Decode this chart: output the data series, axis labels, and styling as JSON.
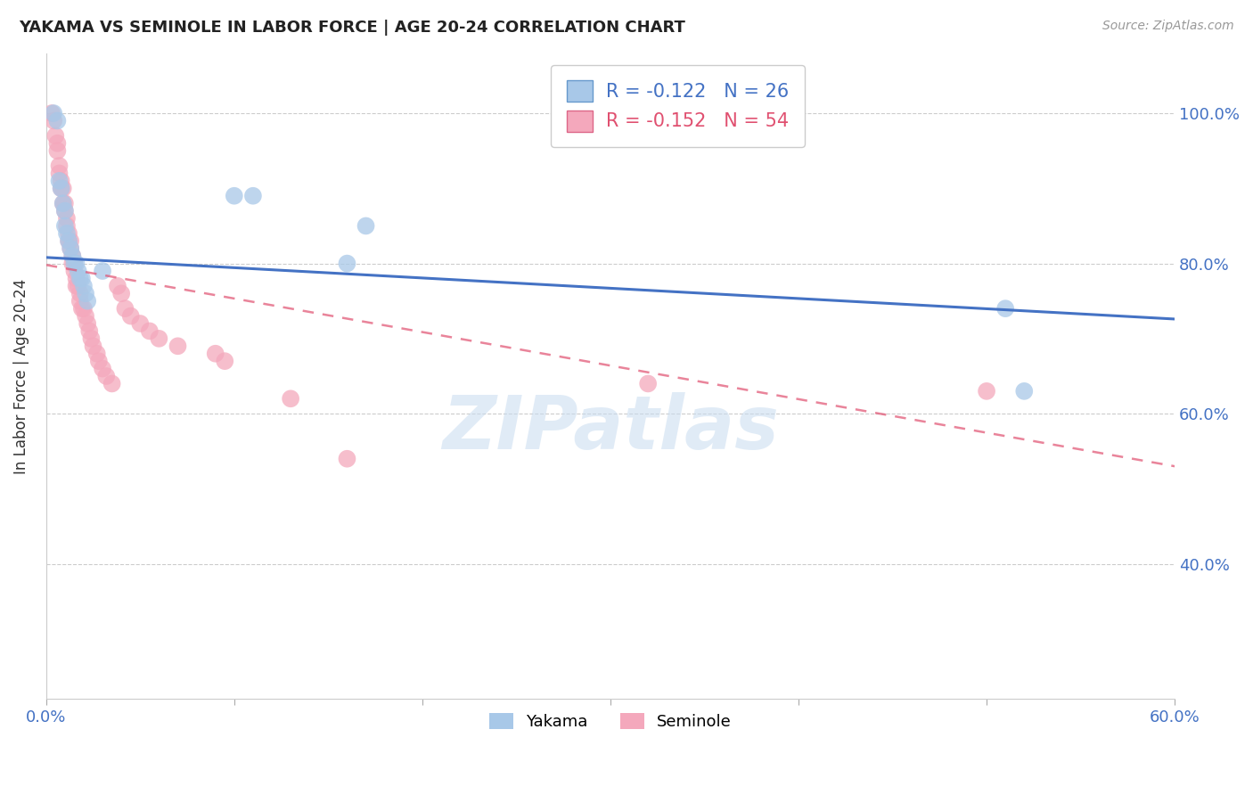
{
  "title": "YAKAMA VS SEMINOLE IN LABOR FORCE | AGE 20-24 CORRELATION CHART",
  "source": "Source: ZipAtlas.com",
  "ylabel": "In Labor Force | Age 20-24",
  "xlim": [
    0.0,
    0.6
  ],
  "ylim": [
    0.22,
    1.08
  ],
  "yakama_color": "#A8C8E8",
  "seminole_color": "#F4A8BC",
  "trendline_yakama_color": "#4472C4",
  "trendline_seminole_color": "#E05070",
  "legend_r_yakama": "R = -0.122",
  "legend_n_yakama": "N = 26",
  "legend_r_seminole": "R = -0.152",
  "legend_n_seminole": "N = 54",
  "watermark": "ZIPatlas",
  "yakama_x": [
    0.004,
    0.006,
    0.007,
    0.008,
    0.009,
    0.01,
    0.01,
    0.011,
    0.012,
    0.013,
    0.014,
    0.015,
    0.016,
    0.017,
    0.018,
    0.019,
    0.02,
    0.021,
    0.022,
    0.03,
    0.1,
    0.11,
    0.16,
    0.17,
    0.51,
    0.52
  ],
  "yakama_y": [
    1.0,
    0.99,
    0.91,
    0.9,
    0.88,
    0.87,
    0.85,
    0.84,
    0.83,
    0.82,
    0.81,
    0.8,
    0.8,
    0.79,
    0.78,
    0.78,
    0.77,
    0.76,
    0.75,
    0.79,
    0.89,
    0.89,
    0.8,
    0.85,
    0.74,
    0.63
  ],
  "seminole_x": [
    0.003,
    0.004,
    0.005,
    0.006,
    0.006,
    0.007,
    0.007,
    0.008,
    0.008,
    0.009,
    0.009,
    0.01,
    0.01,
    0.011,
    0.011,
    0.012,
    0.012,
    0.013,
    0.013,
    0.014,
    0.014,
    0.015,
    0.015,
    0.016,
    0.016,
    0.017,
    0.018,
    0.018,
    0.019,
    0.02,
    0.021,
    0.022,
    0.023,
    0.024,
    0.025,
    0.027,
    0.028,
    0.03,
    0.032,
    0.035,
    0.038,
    0.04,
    0.042,
    0.045,
    0.05,
    0.055,
    0.06,
    0.07,
    0.09,
    0.095,
    0.13,
    0.16,
    0.32,
    0.5
  ],
  "seminole_y": [
    1.0,
    0.99,
    0.97,
    0.96,
    0.95,
    0.93,
    0.92,
    0.91,
    0.9,
    0.9,
    0.88,
    0.88,
    0.87,
    0.86,
    0.85,
    0.84,
    0.83,
    0.83,
    0.82,
    0.81,
    0.8,
    0.8,
    0.79,
    0.78,
    0.77,
    0.77,
    0.76,
    0.75,
    0.74,
    0.74,
    0.73,
    0.72,
    0.71,
    0.7,
    0.69,
    0.68,
    0.67,
    0.66,
    0.65,
    0.64,
    0.77,
    0.76,
    0.74,
    0.73,
    0.72,
    0.71,
    0.7,
    0.69,
    0.68,
    0.67,
    0.62,
    0.54,
    0.64,
    0.63
  ]
}
